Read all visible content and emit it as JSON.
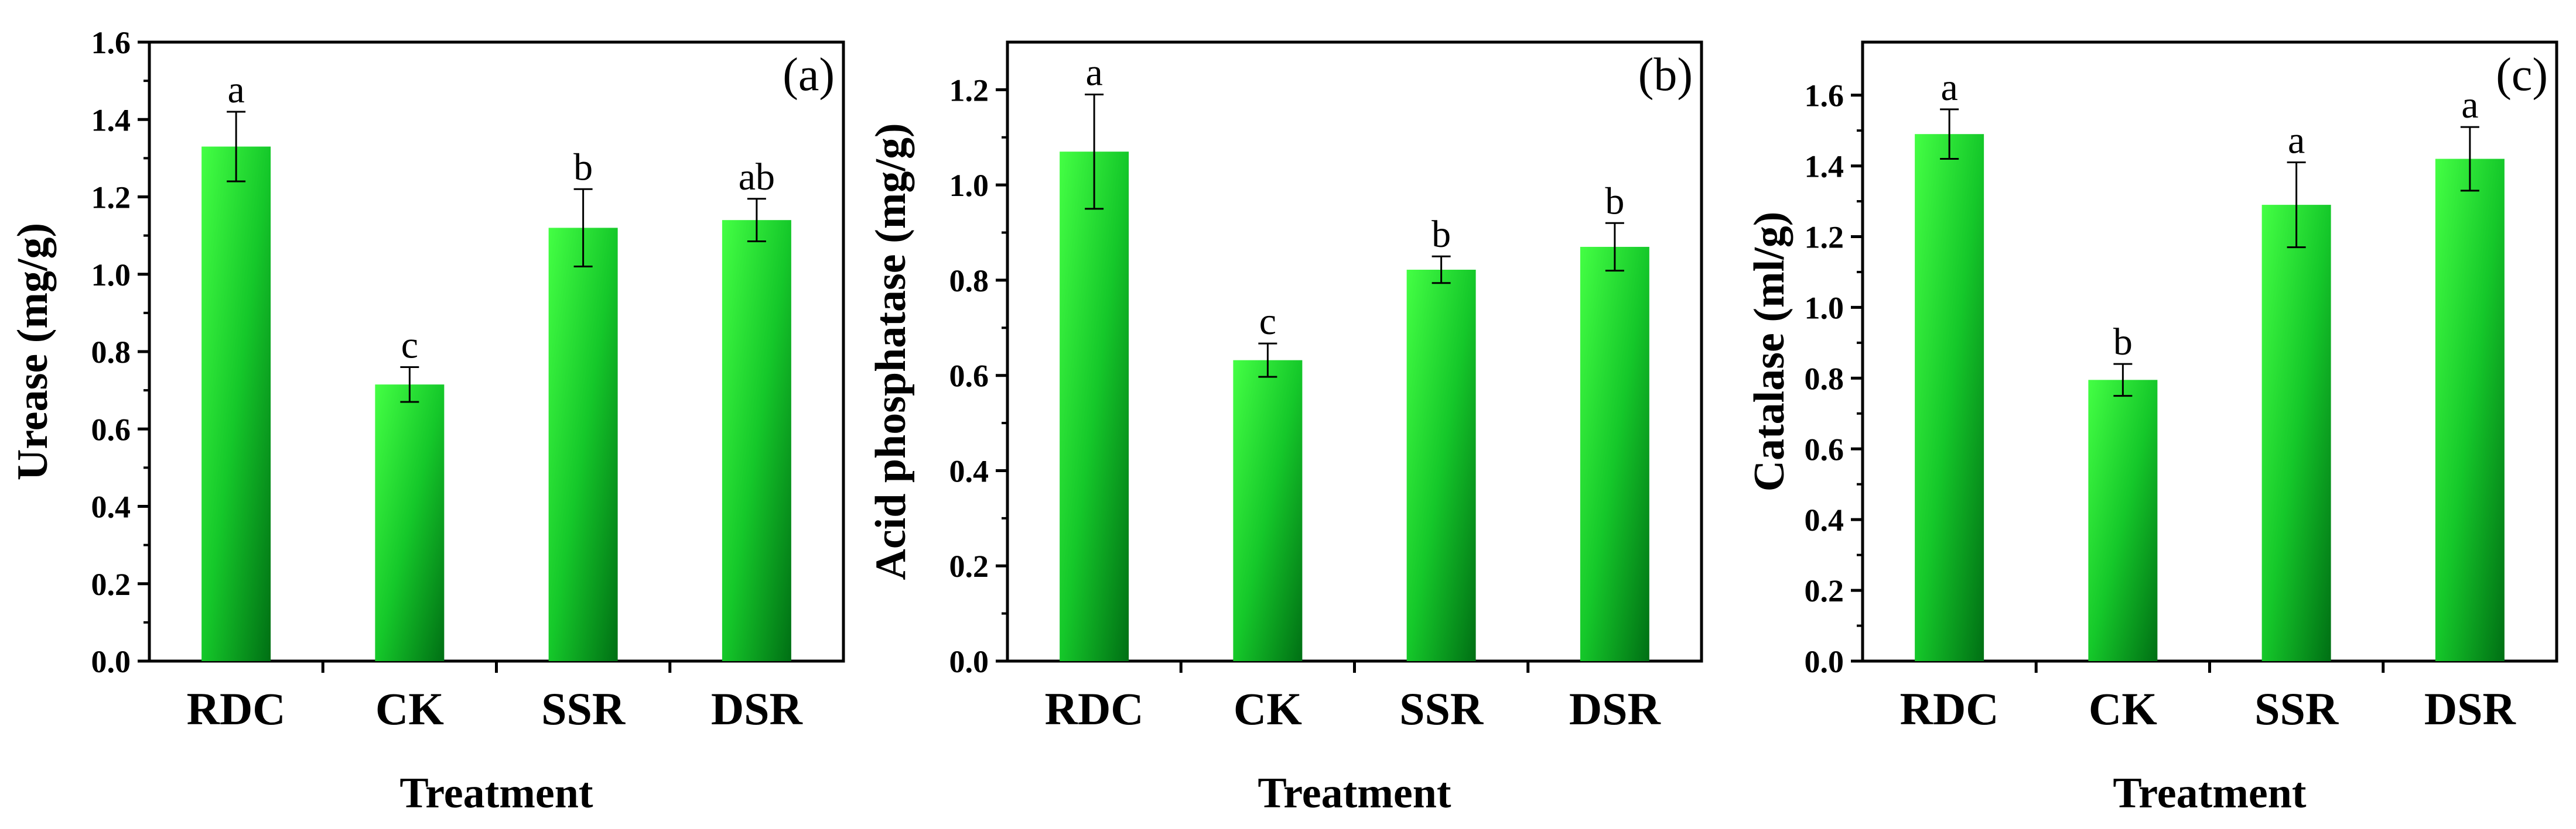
{
  "colors": {
    "bar_light": "#33ff33",
    "bar_dark": "#007a1a",
    "axis": "#000000"
  },
  "chart_data": [
    {
      "type": "bar",
      "panel_label": "(a)",
      "title": "",
      "xlabel": "Treatment",
      "ylabel": "Urease (mg/g)",
      "categories": [
        "RDC",
        "CK",
        "SSR",
        "DSR"
      ],
      "values": [
        1.33,
        0.715,
        1.12,
        1.14
      ],
      "errors": [
        0.09,
        0.045,
        0.1,
        0.055
      ],
      "significance": [
        "a",
        "c",
        "b",
        "ab"
      ],
      "ylim": [
        0,
        1.6
      ],
      "yticks": [
        0.0,
        0.2,
        0.4,
        0.6,
        0.8,
        1.0,
        1.2,
        1.4,
        1.6
      ],
      "ytick_labels": [
        "0.0",
        "0.2",
        "0.4",
        "0.6",
        "0.8",
        "1.0",
        "1.2",
        "1.4",
        "1.6"
      ]
    },
    {
      "type": "bar",
      "panel_label": "(b)",
      "title": "",
      "xlabel": "Treatment",
      "ylabel": "Acid phosphatase (mg/g)",
      "categories": [
        "RDC",
        "CK",
        "SSR",
        "DSR"
      ],
      "values": [
        1.07,
        0.632,
        0.822,
        0.87
      ],
      "errors": [
        0.12,
        0.035,
        0.028,
        0.05
      ],
      "significance": [
        "a",
        "c",
        "b",
        "b"
      ],
      "ylim": [
        0,
        1.3
      ],
      "yticks": [
        0.0,
        0.2,
        0.4,
        0.6,
        0.8,
        1.0,
        1.2
      ],
      "ytick_labels": [
        "0.0",
        "0.2",
        "0.4",
        "0.6",
        "0.8",
        "1.0",
        "1.2"
      ]
    },
    {
      "type": "bar",
      "panel_label": "(c)",
      "title": "",
      "xlabel": "Treatment",
      "ylabel": "Catalase (ml/g)",
      "categories": [
        "RDC",
        "CK",
        "SSR",
        "DSR"
      ],
      "values": [
        1.49,
        0.795,
        1.29,
        1.42
      ],
      "errors": [
        0.07,
        0.045,
        0.12,
        0.09
      ],
      "significance": [
        "a",
        "b",
        "a",
        "a"
      ],
      "ylim": [
        0,
        1.75
      ],
      "yticks": [
        0.0,
        0.2,
        0.4,
        0.6,
        0.8,
        1.0,
        1.2,
        1.4,
        1.6
      ],
      "ytick_labels": [
        "0.0",
        "0.2",
        "0.4",
        "0.6",
        "0.8",
        "1.0",
        "1.2",
        "1.4",
        "1.6"
      ]
    }
  ]
}
